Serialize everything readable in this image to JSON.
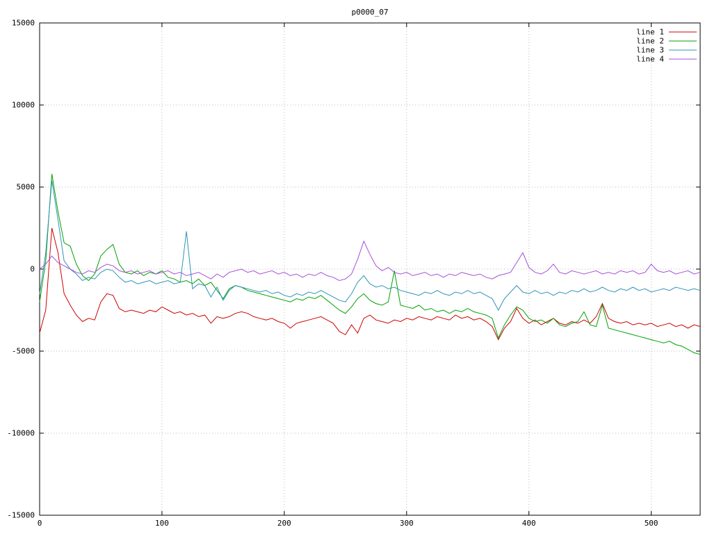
{
  "title": "p0000_07",
  "colors": {
    "background": "#ffffff",
    "border": "#000000",
    "grid": "#bbbbbb",
    "tick_text": "#000000"
  },
  "chart_data": {
    "type": "line",
    "title": "p0000_07",
    "xlabel": "",
    "ylabel": "",
    "xlim": [
      0,
      540
    ],
    "ylim": [
      -15000,
      15000
    ],
    "x_ticks": [
      0,
      100,
      200,
      300,
      400,
      500
    ],
    "y_ticks": [
      -15000,
      -10000,
      -5000,
      0,
      5000,
      10000,
      15000
    ],
    "grid": true,
    "grid_style": "dotted",
    "legend_position": "top-right",
    "x_start": 0,
    "x_step": 5,
    "series": [
      {
        "name": "line 1",
        "color": "#cc0000",
        "values": [
          -3900,
          -2500,
          2500,
          1000,
          -1500,
          -2200,
          -2800,
          -3200,
          -3000,
          -3100,
          -2000,
          -1500,
          -1600,
          -2400,
          -2600,
          -2500,
          -2600,
          -2700,
          -2500,
          -2600,
          -2300,
          -2500,
          -2700,
          -2600,
          -2800,
          -2700,
          -2900,
          -2800,
          -3300,
          -2900,
          -3000,
          -2900,
          -2700,
          -2600,
          -2700,
          -2900,
          -3000,
          -3100,
          -3000,
          -3200,
          -3300,
          -3600,
          -3300,
          -3200,
          -3100,
          -3000,
          -2900,
          -3100,
          -3300,
          -3800,
          -4000,
          -3400,
          -3900,
          -3000,
          -2800,
          -3100,
          -3200,
          -3300,
          -3100,
          -3200,
          -3000,
          -3100,
          -2900,
          -3000,
          -3100,
          -2900,
          -3000,
          -3100,
          -2800,
          -3000,
          -2900,
          -3100,
          -3000,
          -3200,
          -3500,
          -4300,
          -3600,
          -3200,
          -2400,
          -3000,
          -3300,
          -3100,
          -3400,
          -3200,
          -3000,
          -3300,
          -3400,
          -3200,
          -3300,
          -3100,
          -3300,
          -2900,
          -2100,
          -3000,
          -3200,
          -3300,
          -3200,
          -3400,
          -3300,
          -3400,
          -3300,
          -3500,
          -3400,
          -3300,
          -3500,
          -3400,
          -3600,
          -3400,
          -3500
        ]
      },
      {
        "name": "line 2",
        "color": "#00a000",
        "values": [
          -2000,
          500,
          5800,
          3500,
          1600,
          1400,
          300,
          -400,
          -700,
          -300,
          800,
          1200,
          1500,
          300,
          -200,
          -300,
          -100,
          -400,
          -200,
          -300,
          -100,
          -500,
          -600,
          -800,
          -700,
          -900,
          -600,
          -1000,
          -800,
          -1300,
          -1800,
          -1200,
          -1000,
          -1100,
          -1300,
          -1400,
          -1500,
          -1600,
          -1700,
          -1800,
          -1900,
          -2000,
          -1800,
          -1900,
          -1700,
          -1800,
          -1600,
          -1900,
          -2200,
          -2500,
          -2700,
          -2300,
          -1800,
          -1500,
          -1900,
          -2100,
          -2200,
          -2000,
          -100,
          -2200,
          -2300,
          -2400,
          -2200,
          -2500,
          -2400,
          -2600,
          -2500,
          -2700,
          -2500,
          -2600,
          -2400,
          -2600,
          -2700,
          -2800,
          -3000,
          -4200,
          -3400,
          -2800,
          -2300,
          -2500,
          -3000,
          -3200,
          -3100,
          -3300,
          -3000,
          -3400,
          -3500,
          -3300,
          -3200,
          -2600,
          -3400,
          -3500,
          -2200,
          -3600,
          -3700,
          -3800,
          -3900,
          -4000,
          -4100,
          -4200,
          -4300,
          -4400,
          -4500,
          -4400,
          -4600,
          -4700,
          -4900,
          -5100,
          -5200
        ]
      },
      {
        "name": "line 3",
        "color": "#2e93b8",
        "values": [
          -1500,
          1000,
          5400,
          3000,
          500,
          0,
          -300,
          -700,
          -500,
          -600,
          -200,
          0,
          -100,
          -500,
          -800,
          -700,
          -900,
          -800,
          -700,
          -900,
          -800,
          -700,
          -900,
          -800,
          2300,
          -1200,
          -900,
          -1000,
          -1700,
          -1100,
          -1900,
          -1300,
          -1000,
          -1100,
          -1200,
          -1300,
          -1400,
          -1300,
          -1500,
          -1400,
          -1600,
          -1700,
          -1500,
          -1600,
          -1400,
          -1500,
          -1300,
          -1500,
          -1700,
          -1900,
          -2000,
          -1500,
          -800,
          -400,
          -900,
          -1100,
          -1000,
          -1200,
          -1100,
          -1300,
          -1400,
          -1500,
          -1600,
          -1400,
          -1500,
          -1300,
          -1500,
          -1600,
          -1400,
          -1500,
          -1300,
          -1500,
          -1400,
          -1600,
          -1800,
          -2500,
          -1800,
          -1400,
          -1000,
          -1400,
          -1500,
          -1300,
          -1500,
          -1400,
          -1600,
          -1400,
          -1500,
          -1300,
          -1400,
          -1200,
          -1400,
          -1300,
          -1100,
          -1300,
          -1400,
          -1200,
          -1300,
          -1100,
          -1300,
          -1200,
          -1400,
          -1300,
          -1200,
          -1300,
          -1100,
          -1200,
          -1300,
          -1200,
          -1300
        ]
      },
      {
        "name": "line 4",
        "color": "#a64fd8",
        "values": [
          0,
          300,
          800,
          400,
          200,
          0,
          -200,
          -300,
          -100,
          -200,
          100,
          300,
          200,
          -100,
          -200,
          -100,
          -300,
          -200,
          -100,
          -300,
          -200,
          -100,
          -300,
          -200,
          -400,
          -300,
          -200,
          -400,
          -600,
          -300,
          -500,
          -200,
          -100,
          0,
          -200,
          -100,
          -300,
          -200,
          -100,
          -300,
          -200,
          -400,
          -300,
          -500,
          -300,
          -400,
          -200,
          -400,
          -500,
          -700,
          -600,
          -300,
          600,
          1700,
          900,
          200,
          -100,
          100,
          -200,
          -300,
          -200,
          -400,
          -300,
          -200,
          -400,
          -300,
          -500,
          -300,
          -400,
          -200,
          -300,
          -400,
          -300,
          -500,
          -600,
          -400,
          -300,
          -200,
          400,
          1000,
          100,
          -200,
          -300,
          -100,
          300,
          -200,
          -300,
          -100,
          -200,
          -300,
          -200,
          -100,
          -300,
          -200,
          -300,
          -100,
          -200,
          -100,
          -300,
          -200,
          300,
          -100,
          -200,
          -100,
          -300,
          -200,
          -100,
          -300,
          -200
        ]
      }
    ]
  }
}
